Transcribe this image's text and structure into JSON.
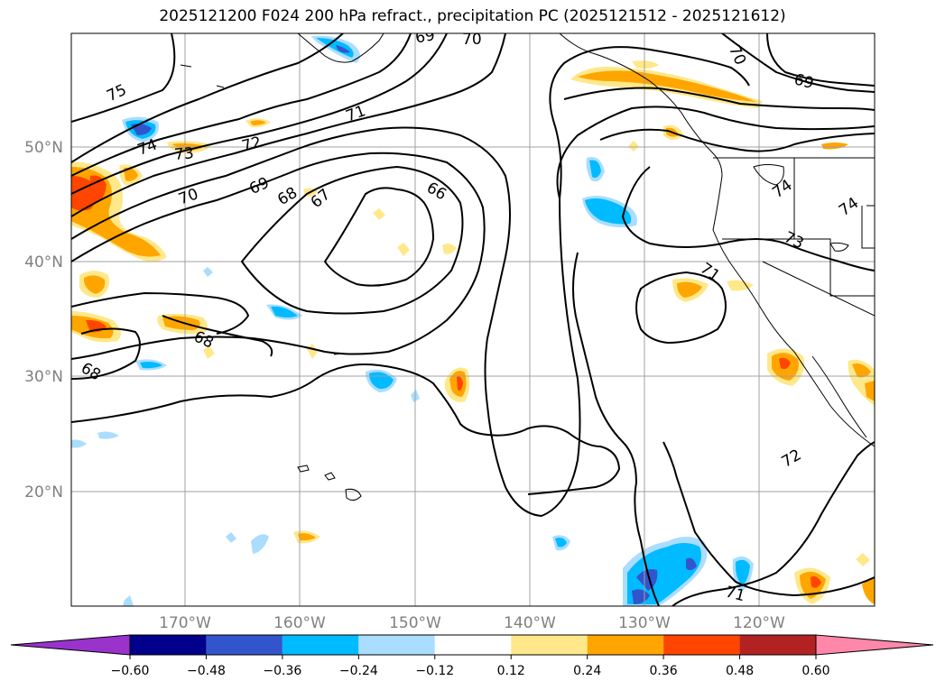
{
  "title": "2025121200 F024 200 hPa refract., precipitation PC (2025121512 - 2025121612)",
  "map": {
    "lat_labels": [
      "50°N",
      "40°N",
      "30°N",
      "20°N"
    ],
    "lon_labels": [
      "170°W",
      "160°W",
      "150°W",
      "140°W",
      "130°W",
      "120°W"
    ],
    "contour_labels": [
      {
        "text": "75"
      },
      {
        "text": "74"
      },
      {
        "text": "73"
      },
      {
        "text": "72"
      },
      {
        "text": "71"
      },
      {
        "text": "70"
      },
      {
        "text": "69"
      },
      {
        "text": "68"
      },
      {
        "text": "67"
      },
      {
        "text": "66"
      },
      {
        "text": "69"
      },
      {
        "text": "70"
      },
      {
        "text": "70"
      },
      {
        "text": "69"
      },
      {
        "text": "74"
      },
      {
        "text": "74"
      },
      {
        "text": "73"
      },
      {
        "text": "71"
      },
      {
        "text": "68"
      },
      {
        "text": "68"
      },
      {
        "text": "72"
      },
      {
        "text": "71"
      }
    ]
  },
  "colorbar": {
    "ticks": [
      "−0.60",
      "−0.48",
      "−0.36",
      "−0.24",
      "−0.12",
      "0.12",
      "0.24",
      "0.36",
      "0.48",
      "0.60"
    ],
    "colors": [
      "#9933cc",
      "#00008b",
      "#3355cc",
      "#00bbff",
      "#aaddff",
      "#ffffff",
      "#ffe88a",
      "#ffa500",
      "#ff4500",
      "#b22222",
      "#ff88aa",
      "#ff88aa"
    ]
  }
}
